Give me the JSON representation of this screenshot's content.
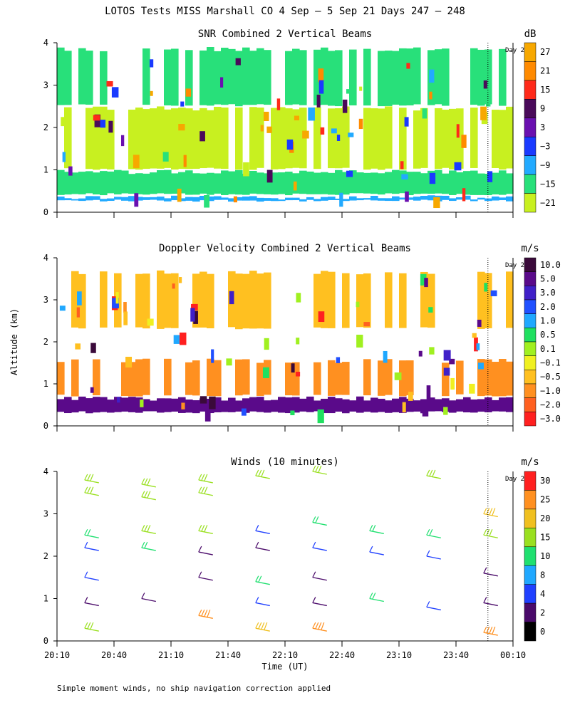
{
  "page_title": "LOTOS Tests MISS Marshall CO   4 Sep —  5 Sep 21 Days 247 — 248",
  "footnote": "Simple moment winds, no ship navigation correction applied",
  "y_axis_label": "Altitude (km)",
  "x_axis_label": "Time (UT)",
  "day_marker": "Day 2",
  "chart_data": [
    {
      "type": "heatmap",
      "title": "SNR Combined 2 Vertical Beams",
      "unit": "dB",
      "xlabel": "Time (UT)",
      "ylabel": "Altitude (km)",
      "x_ticks": [
        "20:10",
        "20:40",
        "21:10",
        "21:40",
        "22:10",
        "22:40",
        "23:10",
        "23:40",
        "00:10"
      ],
      "y_ticks": [
        "0",
        "1",
        "2",
        "3",
        "4"
      ],
      "ylim": [
        0,
        4
      ],
      "day_boundary_hours_from_start": 3.78,
      "colorbar_labels": [
        "27",
        "21",
        "15",
        "9",
        "3",
        "−3",
        "−9",
        "−15",
        "−21"
      ],
      "colorbar_colors": [
        "#f7a800",
        "#ff8a00",
        "#ff2a1a",
        "#4a0a5a",
        "#6a10b0",
        "#1a3aff",
        "#22aaff",
        "#28e07a",
        "#c8f020"
      ],
      "bands": [
        {
          "alt_min": 0.25,
          "alt_max": 0.4,
          "value_db": -8,
          "color": "#22aaff"
        },
        {
          "alt_min": 0.4,
          "alt_max": 1.0,
          "value_db": -12,
          "color": "#28e07a"
        },
        {
          "alt_min": 1.0,
          "alt_max": 2.5,
          "value_db": -17,
          "color": "#c8f020"
        },
        {
          "alt_min": 2.5,
          "alt_max": 3.9,
          "value_db": -14,
          "color": "#28e07a"
        }
      ]
    },
    {
      "type": "heatmap",
      "title": "Doppler Velocity Combined 2 Vertical Beams",
      "unit": "m/s",
      "xlabel": "Time (UT)",
      "ylabel": "Altitude (km)",
      "x_ticks": [
        "20:10",
        "20:40",
        "21:10",
        "21:40",
        "22:10",
        "22:40",
        "23:10",
        "23:40",
        "00:10"
      ],
      "y_ticks": [
        "0",
        "1",
        "2",
        "3",
        "4"
      ],
      "ylim": [
        0,
        4
      ],
      "day_boundary_hours_from_start": 3.78,
      "colorbar_labels": [
        "10.0",
        "5.0",
        "3.0",
        "2.0",
        "1.0",
        "0.5",
        "0.1",
        "−0.1",
        "−0.5",
        "−1.0",
        "−2.0",
        "−3.0"
      ],
      "colorbar_colors": [
        "#3a0a3a",
        "#5a0a8a",
        "#4020c8",
        "#2050ff",
        "#20a8ff",
        "#20e060",
        "#a0f020",
        "#f0f020",
        "#ffc020",
        "#ff9020",
        "#ff6020",
        "#ff2020"
      ],
      "bands": [
        {
          "alt_min": 0.3,
          "alt_max": 0.7,
          "value_ms": 8,
          "color": "#5a0a8a"
        },
        {
          "alt_min": 0.7,
          "alt_max": 1.6,
          "value_ms": -1.5,
          "color": "#ff9020"
        },
        {
          "alt_min": 2.3,
          "alt_max": 3.7,
          "value_ms": -1.0,
          "color": "#ffc020"
        }
      ]
    },
    {
      "type": "scatter",
      "title": "Winds (10 minutes)",
      "unit": "m/s",
      "xlabel": "Time (UT)",
      "ylabel": "Altitude (km)",
      "x_ticks": [
        "20:10",
        "20:40",
        "21:10",
        "21:40",
        "22:10",
        "22:40",
        "23:10",
        "23:40",
        "00:10"
      ],
      "y_ticks": [
        "0",
        "1",
        "2",
        "3",
        "4"
      ],
      "ylim": [
        0,
        4
      ],
      "day_boundary_hours_from_start": 3.78,
      "colorbar_labels": [
        "30",
        "25",
        "20",
        "15",
        "10",
        "8",
        "4",
        "2",
        "0"
      ],
      "colorbar_colors": [
        "#ff2020",
        "#ff9020",
        "#f0c020",
        "#9ae020",
        "#20e070",
        "#20a8ff",
        "#2040ff",
        "#4a0a6a",
        "#000000"
      ],
      "profile_times_hours_from_start": [
        0.33,
        0.83,
        1.33,
        1.83,
        2.33,
        2.83,
        3.33,
        3.83
      ],
      "profiles": [
        {
          "time": "20:30",
          "barbs": [
            {
              "alt": 3.8,
              "speed": 15
            },
            {
              "alt": 3.5,
              "speed": 15
            },
            {
              "alt": 2.5,
              "speed": 10
            },
            {
              "alt": 2.2,
              "speed": 5
            },
            {
              "alt": 1.5,
              "speed": 4
            },
            {
              "alt": 0.9,
              "speed": 2
            },
            {
              "alt": 0.3,
              "speed": 15
            }
          ]
        },
        {
          "time": "21:00",
          "barbs": [
            {
              "alt": 3.7,
              "speed": 15
            },
            {
              "alt": 3.4,
              "speed": 15
            },
            {
              "alt": 2.6,
              "speed": 15
            },
            {
              "alt": 2.2,
              "speed": 10
            },
            {
              "alt": 1.0,
              "speed": 2
            }
          ]
        },
        {
          "time": "21:30",
          "barbs": [
            {
              "alt": 3.8,
              "speed": 15
            },
            {
              "alt": 3.5,
              "speed": 15
            },
            {
              "alt": 2.6,
              "speed": 15
            },
            {
              "alt": 2.1,
              "speed": 2
            },
            {
              "alt": 1.5,
              "speed": 2
            },
            {
              "alt": 0.6,
              "speed": 25
            }
          ]
        },
        {
          "time": "22:00",
          "barbs": [
            {
              "alt": 3.9,
              "speed": 15
            },
            {
              "alt": 2.6,
              "speed": 4
            },
            {
              "alt": 2.2,
              "speed": 2
            },
            {
              "alt": 1.4,
              "speed": 10
            },
            {
              "alt": 0.9,
              "speed": 4
            },
            {
              "alt": 0.3,
              "speed": 20
            }
          ]
        },
        {
          "time": "22:30",
          "barbs": [
            {
              "alt": 4.0,
              "speed": 15
            },
            {
              "alt": 2.8,
              "speed": 10
            },
            {
              "alt": 2.2,
              "speed": 4
            },
            {
              "alt": 1.5,
              "speed": 2
            },
            {
              "alt": 0.9,
              "speed": 2
            },
            {
              "alt": 0.3,
              "speed": 25
            }
          ]
        },
        {
          "time": "23:00",
          "barbs": [
            {
              "alt": 2.6,
              "speed": 10
            },
            {
              "alt": 2.1,
              "speed": 4
            },
            {
              "alt": 1.0,
              "speed": 10
            }
          ]
        },
        {
          "time": "23:30",
          "barbs": [
            {
              "alt": 3.9,
              "speed": 15
            },
            {
              "alt": 2.5,
              "speed": 10
            },
            {
              "alt": 2.0,
              "speed": 4
            },
            {
              "alt": 0.8,
              "speed": 4
            }
          ]
        },
        {
          "time": "00:00",
          "barbs": [
            {
              "alt": 3.0,
              "speed": 20
            },
            {
              "alt": 2.5,
              "speed": 15
            },
            {
              "alt": 1.6,
              "speed": 2
            },
            {
              "alt": 0.9,
              "speed": 2
            },
            {
              "alt": 0.2,
              "speed": 25
            }
          ]
        }
      ]
    }
  ]
}
